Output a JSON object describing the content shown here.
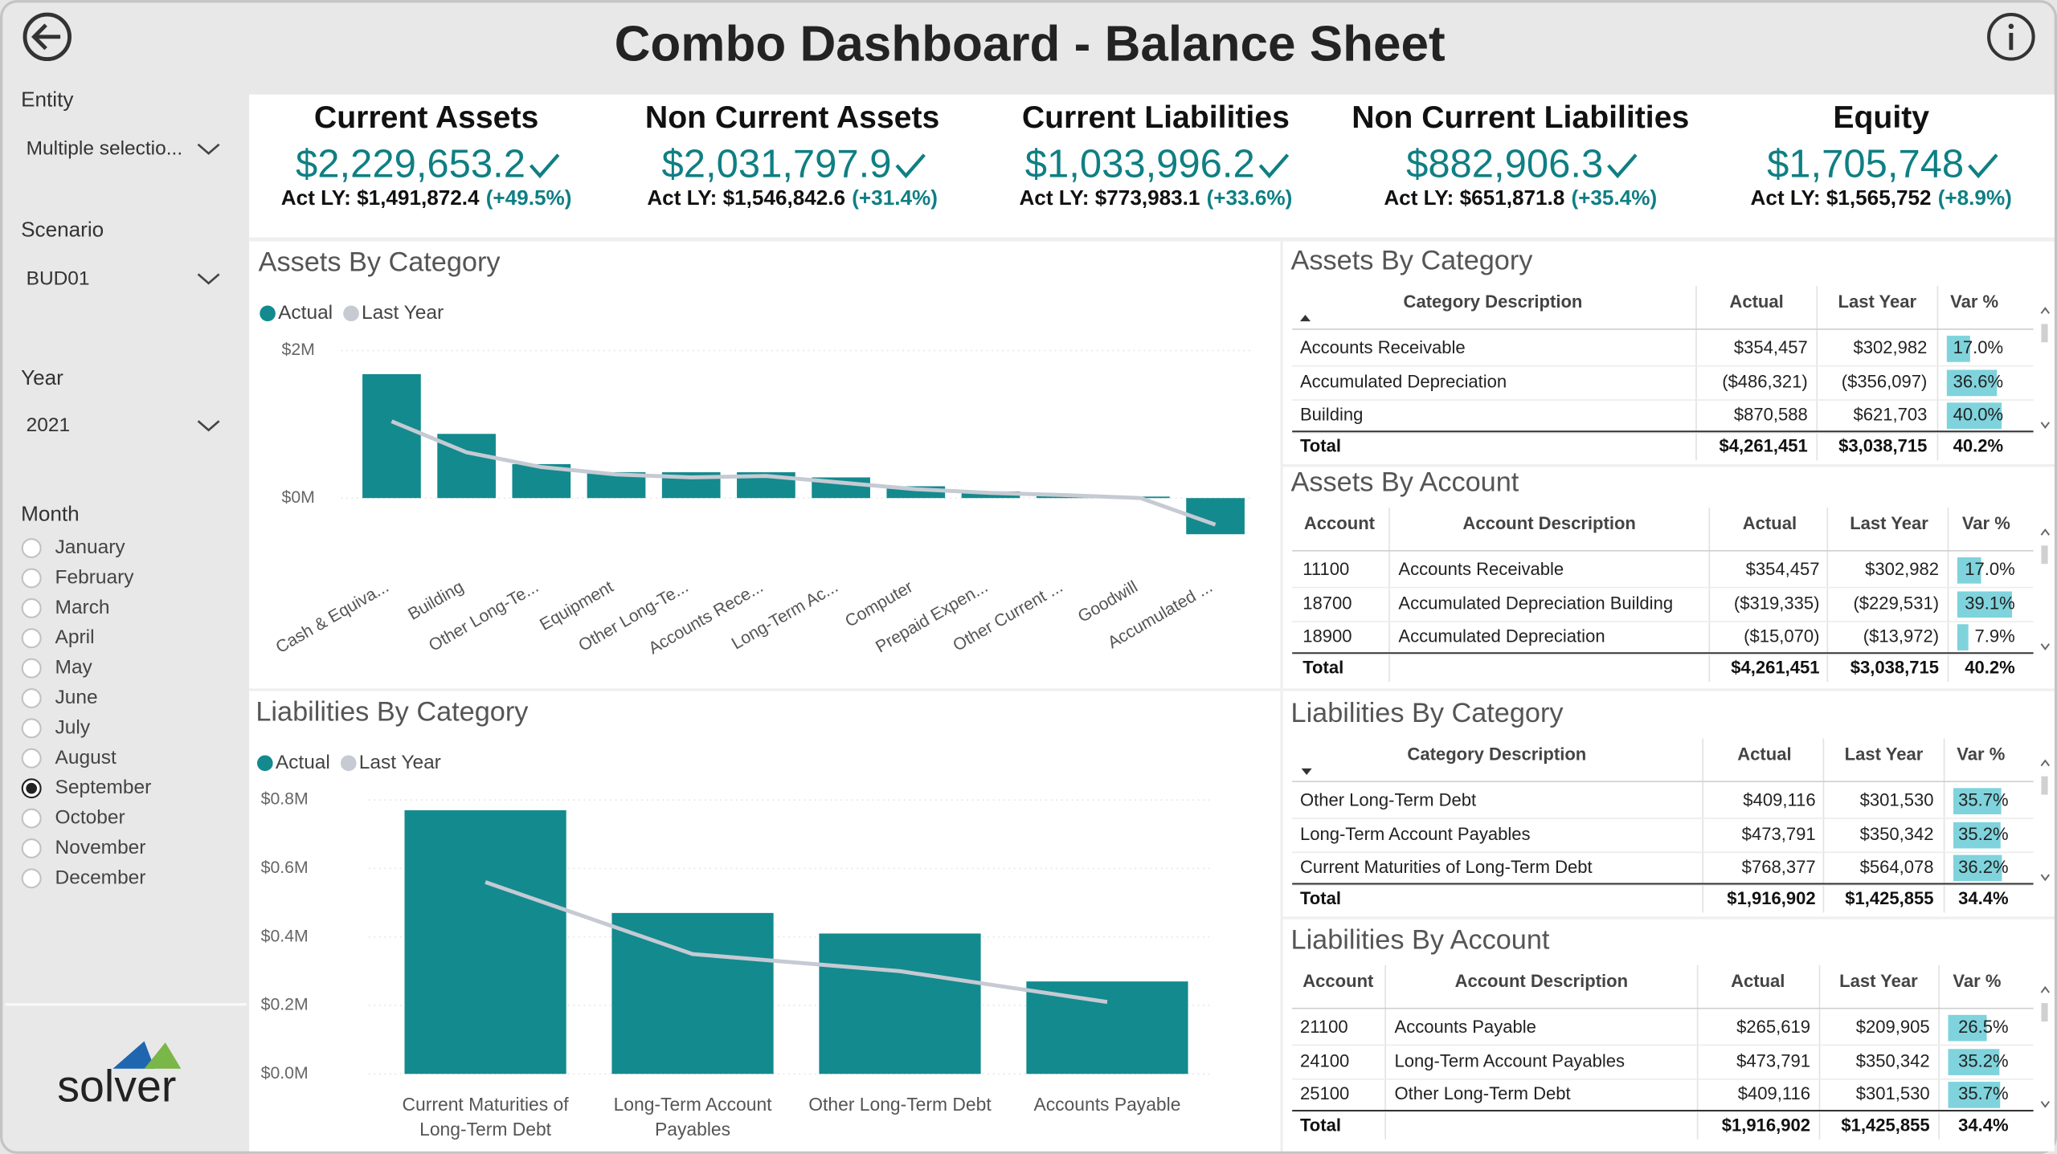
{
  "header": {
    "title": "Combo Dashboard - Balance Sheet"
  },
  "filters": {
    "entity": {
      "label": "Entity",
      "value": "Multiple selectio..."
    },
    "scenario": {
      "label": "Scenario",
      "value": "BUD01"
    },
    "year": {
      "label": "Year",
      "value": "2021"
    },
    "month": {
      "label": "Month",
      "options": [
        "January",
        "February",
        "March",
        "April",
        "May",
        "June",
        "July",
        "August",
        "September",
        "October",
        "November",
        "December"
      ],
      "selected": "September"
    }
  },
  "logo": {
    "text": "solver"
  },
  "kpis": [
    {
      "title": "Current Assets",
      "value": "$2,229,653.2",
      "last_year": "Act LY: $1,491,872.4",
      "change": "(+49.5%)"
    },
    {
      "title": "Non Current Assets",
      "value": "$2,031,797.9",
      "last_year": "Act LY: $1,546,842.6",
      "change": "(+31.4%)"
    },
    {
      "title": "Current Liabilities",
      "value": "$1,033,996.2",
      "last_year": "Act LY: $773,983.1",
      "change": "(+33.6%)"
    },
    {
      "title": "Non Current Liabilities",
      "value": "$882,906.3",
      "last_year": "Act LY: $651,871.8",
      "change": "(+35.4%)"
    },
    {
      "title": "Equity",
      "value": "$1,705,748",
      "last_year": "Act LY: $1,565,752",
      "change": "(+8.9%)"
    }
  ],
  "chart_data": [
    {
      "type": "combo",
      "title": "Assets By Category",
      "categories": [
        "Cash & Equiva...",
        "Building",
        "Other Long-Te...",
        "Equipment",
        "Other Long-Te...",
        "Accounts Rece...",
        "Long-Term Ac...",
        "Computer",
        "Prepaid Expen...",
        "Other Current ...",
        "Goodwill",
        "Accumulated ..."
      ],
      "series": [
        {
          "name": "Actual",
          "type": "bar",
          "color": "#138a8e",
          "values": [
            1.68,
            0.87,
            0.46,
            0.35,
            0.35,
            0.35,
            0.28,
            0.16,
            0.09,
            0.05,
            0.02,
            -0.49
          ]
        },
        {
          "name": "Last Year",
          "type": "line",
          "color": "#c5cad3",
          "values": [
            1.04,
            0.62,
            0.42,
            0.32,
            0.28,
            0.3,
            0.21,
            0.12,
            0.07,
            0.04,
            0.0,
            -0.36
          ]
        }
      ],
      "ylim": [
        -0.75,
        2.2
      ],
      "yticks": [
        {
          "value": 0,
          "label": "$0M"
        },
        {
          "value": 2,
          "label": "$2M"
        }
      ],
      "grid": true,
      "legend": "top-left"
    },
    {
      "type": "combo",
      "title": "Liabilities By Category",
      "categories": [
        "Current Maturities of Long-Term Debt",
        "Long-Term Account Payables",
        "Other Long-Term Debt",
        "Accounts Payable"
      ],
      "series": [
        {
          "name": "Actual",
          "type": "bar",
          "color": "#138a8e",
          "values": [
            0.77,
            0.47,
            0.41,
            0.27
          ]
        },
        {
          "name": "Last Year",
          "type": "line",
          "color": "#c5cad3",
          "values": [
            0.56,
            0.35,
            0.3,
            0.21
          ]
        }
      ],
      "ylim": [
        0,
        0.85
      ],
      "yticks": [
        {
          "value": 0,
          "label": "$0.0M"
        },
        {
          "value": 0.2,
          "label": "$0.2M"
        },
        {
          "value": 0.4,
          "label": "$0.4M"
        },
        {
          "value": 0.6,
          "label": "$0.6M"
        },
        {
          "value": 0.8,
          "label": "$0.8M"
        }
      ],
      "grid": true,
      "legend": "top-left"
    }
  ],
  "tables": [
    {
      "title": "Assets By Category",
      "headers": [
        "Category Description",
        "Actual",
        "Last Year",
        "Var %"
      ],
      "rows": [
        [
          "Accounts Receivable",
          "$354,457",
          "$302,982",
          "17.0%"
        ],
        [
          "Accumulated Depreciation",
          "($486,321)",
          "($356,097)",
          "36.6%"
        ],
        [
          "Building",
          "$870,588",
          "$621,703",
          "40.0%"
        ]
      ],
      "total": [
        "Total",
        "$4,261,451",
        "$3,038,715",
        "40.2%"
      ]
    },
    {
      "title": "Assets By Account",
      "headers": [
        "Account",
        "Account Description",
        "Actual",
        "Last Year",
        "Var %"
      ],
      "rows": [
        [
          "11100",
          "Accounts Receivable",
          "$354,457",
          "$302,982",
          "17.0%"
        ],
        [
          "18700",
          "Accumulated Depreciation Building",
          "($319,335)",
          "($229,531)",
          "39.1%"
        ],
        [
          "18900",
          "Accumulated Depreciation",
          "($15,070)",
          "($13,972)",
          "7.9%"
        ]
      ],
      "total": [
        "Total",
        "$4,261,451",
        "$3,038,715",
        "40.2%"
      ]
    },
    {
      "title": "Liabilities By Category",
      "headers": [
        "Category Description",
        "Actual",
        "Last Year",
        "Var %"
      ],
      "rows": [
        [
          "Other Long-Term Debt",
          "$409,116",
          "$301,530",
          "35.7%"
        ],
        [
          "Long-Term Account Payables",
          "$473,791",
          "$350,342",
          "35.2%"
        ],
        [
          "Current Maturities of Long-Term Debt",
          "$768,377",
          "$564,078",
          "36.2%"
        ]
      ],
      "total": [
        "Total",
        "$1,916,902",
        "$1,425,855",
        "34.4%"
      ]
    },
    {
      "title": "Liabilities By Account",
      "headers": [
        "Account",
        "Account Description",
        "Actual",
        "Last Year",
        "Var %"
      ],
      "rows": [
        [
          "21100",
          "Accounts Payable",
          "$265,619",
          "$209,905",
          "26.5%"
        ],
        [
          "24100",
          "Long-Term Account Payables",
          "$473,791",
          "$350,342",
          "35.2%"
        ],
        [
          "25100",
          "Other Long-Term Debt",
          "$409,116",
          "$301,530",
          "35.7%"
        ]
      ],
      "total": [
        "Total",
        "$1,916,902",
        "$1,425,855",
        "34.4%"
      ]
    }
  ]
}
